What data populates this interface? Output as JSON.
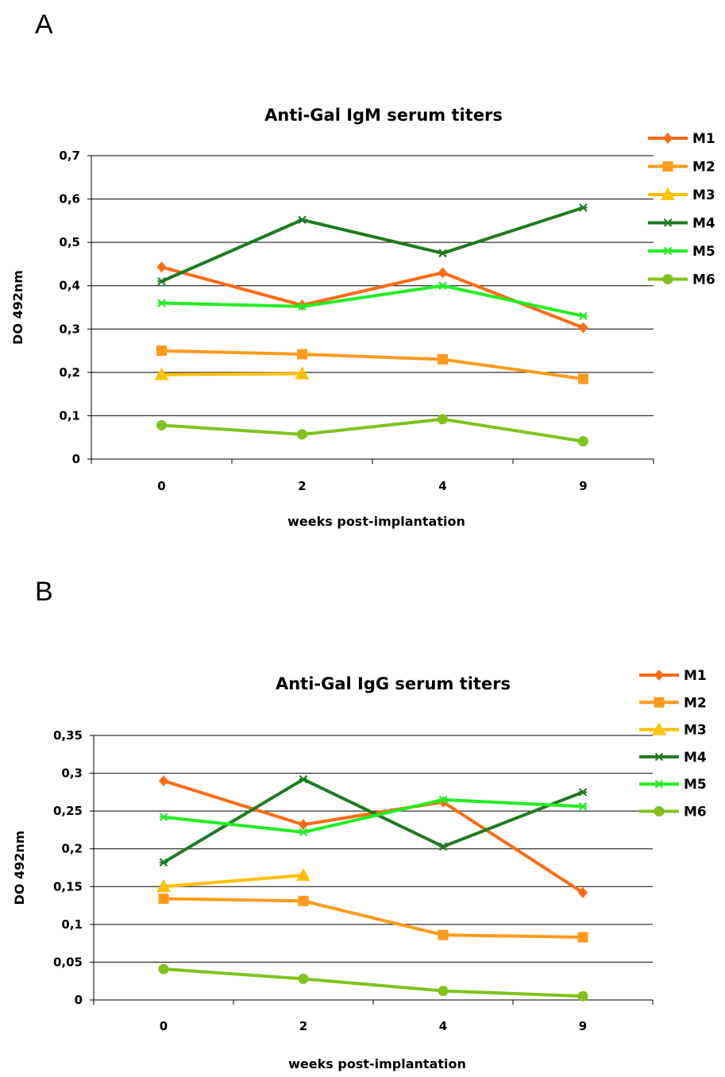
{
  "panels": {
    "a_label": "A",
    "b_label": "B"
  },
  "chart_data": [
    {
      "type": "line",
      "title": "Anti-Gal IgM serum titers",
      "xlabel": "weeks post-implantation",
      "ylabel": "DO 492nm",
      "categories": [
        "0",
        "2",
        "4",
        "9"
      ],
      "ylim": [
        0,
        0.7
      ],
      "yticks": [
        "0",
        "0,1",
        "0,2",
        "0,3",
        "0,4",
        "0,5",
        "0,6",
        "0,7"
      ],
      "ytick_values": [
        0,
        0.1,
        0.2,
        0.3,
        0.4,
        0.5,
        0.6,
        0.7
      ],
      "grid": "horizontal",
      "legend": "right",
      "series": [
        {
          "name": "M1",
          "color": "#ff6a13",
          "marker": "diamond",
          "values": [
            0.443,
            0.355,
            0.43,
            0.303
          ]
        },
        {
          "name": "M2",
          "color": "#ff9a1a",
          "marker": "square",
          "values": [
            0.25,
            0.242,
            0.23,
            0.185
          ]
        },
        {
          "name": "M3",
          "color": "#ffc000",
          "marker": "triangle",
          "values": [
            0.195,
            0.197,
            null,
            null
          ]
        },
        {
          "name": "M4",
          "color": "#1e7b1e",
          "marker": "star",
          "values": [
            0.41,
            0.552,
            0.475,
            0.58
          ]
        },
        {
          "name": "M5",
          "color": "#22ee22",
          "marker": "star",
          "values": [
            0.36,
            0.352,
            0.4,
            0.33
          ]
        },
        {
          "name": "M6",
          "color": "#7fc31c",
          "marker": "circle",
          "values": [
            0.078,
            0.057,
            0.092,
            0.041
          ]
        }
      ]
    },
    {
      "type": "line",
      "title": "Anti-Gal IgG serum titers",
      "xlabel": "weeks post-implantation",
      "ylabel": "DO 492nm",
      "categories": [
        "0",
        "2",
        "4",
        "9"
      ],
      "ylim": [
        0,
        0.35
      ],
      "yticks": [
        "0",
        "0,05",
        "0,1",
        "0,15",
        "0,2",
        "0,25",
        "0,3",
        "0,35"
      ],
      "ytick_values": [
        0,
        0.05,
        0.1,
        0.15,
        0.2,
        0.25,
        0.3,
        0.35
      ],
      "grid": "horizontal",
      "legend": "right",
      "series": [
        {
          "name": "M1",
          "color": "#ff6a13",
          "marker": "diamond",
          "values": [
            0.29,
            0.232,
            0.262,
            0.142
          ]
        },
        {
          "name": "M2",
          "color": "#ff9a1a",
          "marker": "square",
          "values": [
            0.134,
            0.131,
            0.086,
            0.083
          ]
        },
        {
          "name": "M3",
          "color": "#ffc000",
          "marker": "triangle",
          "values": [
            0.15,
            0.165,
            null,
            null
          ]
        },
        {
          "name": "M4",
          "color": "#1e7b1e",
          "marker": "star",
          "values": [
            0.182,
            0.292,
            0.203,
            0.275
          ]
        },
        {
          "name": "M5",
          "color": "#22ee22",
          "marker": "star",
          "values": [
            0.242,
            0.222,
            0.265,
            0.256
          ]
        },
        {
          "name": "M6",
          "color": "#7fc31c",
          "marker": "circle",
          "values": [
            0.041,
            0.028,
            0.012,
            0.005
          ]
        }
      ]
    }
  ]
}
